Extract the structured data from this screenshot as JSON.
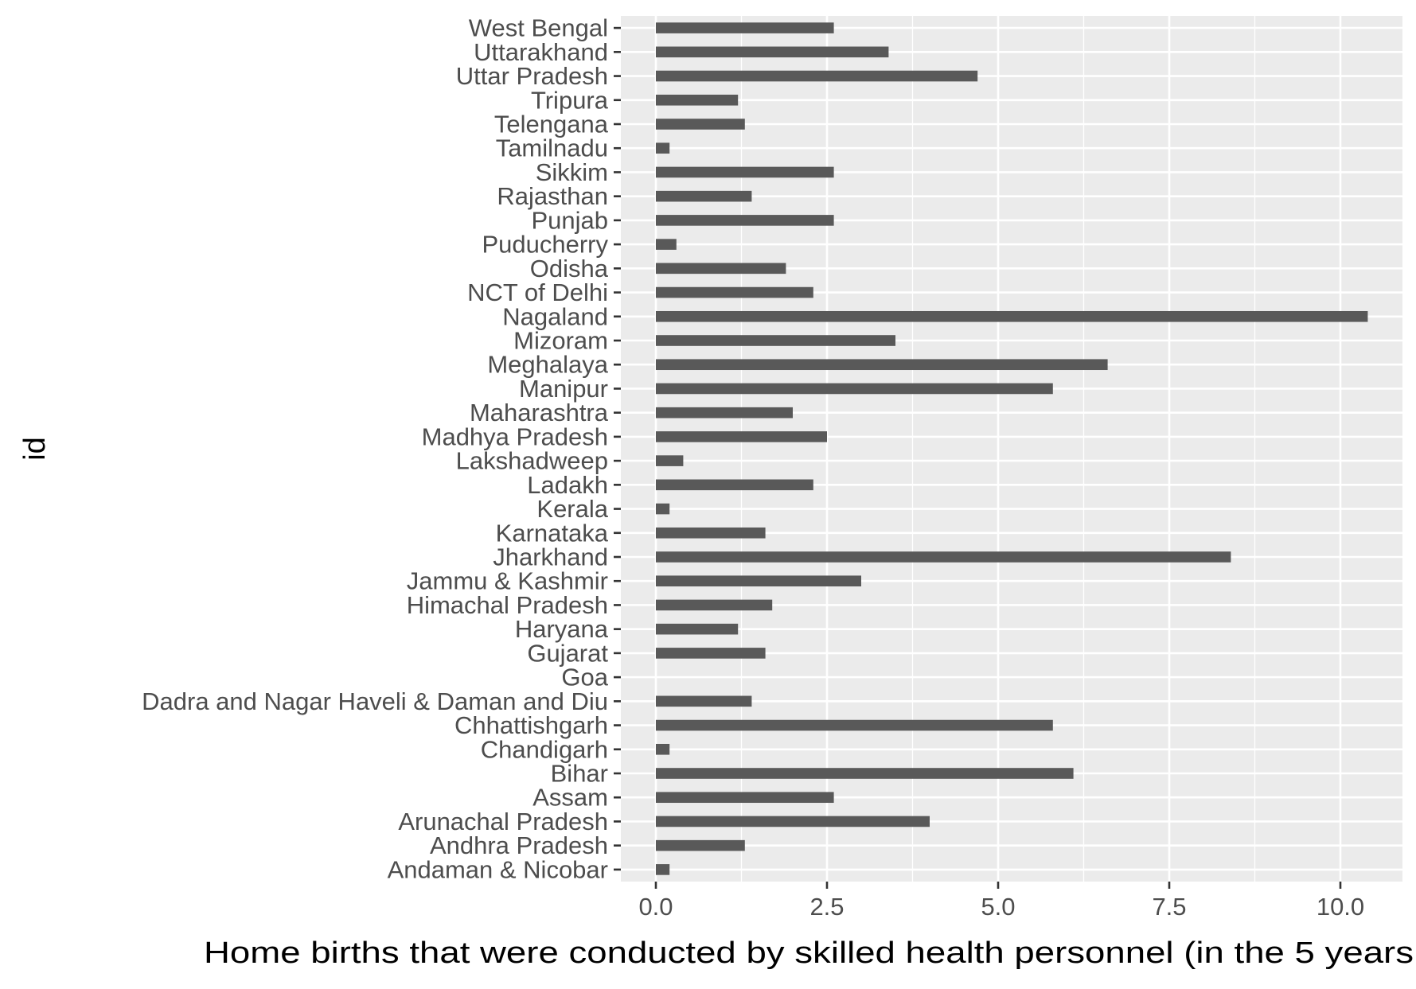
{
  "chart_data": {
    "type": "bar",
    "orientation": "horizontal",
    "xlabel": "Home births that were conducted by skilled health personnel  (in the 5 years",
    "ylabel": "id",
    "xlim": [
      -1.0,
      10.9
    ],
    "x_ticks": [
      0.0,
      2.5,
      5.0,
      7.5,
      10.0
    ],
    "x_tick_labels": [
      "0.0",
      "2.5",
      "5.0",
      "7.5",
      "10.0"
    ],
    "grid": true,
    "legend": "none",
    "categories": [
      "Andaman & Nicobar",
      "Andhra Pradesh",
      "Arunachal Pradesh",
      "Assam",
      "Bihar",
      "Chandigarh",
      "Chhattishgarh",
      "Dadra and Nagar Haveli & Daman and Diu",
      "Goa",
      "Gujarat",
      "Haryana",
      "Himachal Pradesh",
      "Jammu & Kashmir",
      "Jharkhand",
      "Karnataka",
      "Kerala",
      "Ladakh",
      "Lakshadweep",
      "Madhya Pradesh",
      "Maharashtra",
      "Manipur",
      "Meghalaya",
      "Mizoram",
      "Nagaland",
      "NCT of Delhi",
      "Odisha",
      "Puducherry",
      "Punjab",
      "Rajasthan",
      "Sikkim",
      "Tamilnadu",
      "Telengana",
      "Tripura",
      "Uttar Pradesh",
      "Uttarakhand",
      "West Bengal"
    ],
    "values": [
      0.2,
      1.3,
      4.0,
      2.6,
      6.1,
      0.2,
      5.8,
      1.4,
      0.0,
      1.6,
      1.2,
      1.7,
      3.0,
      8.4,
      1.6,
      0.2,
      2.3,
      0.4,
      2.5,
      2.0,
      5.8,
      6.6,
      3.5,
      10.4,
      2.3,
      1.9,
      0.3,
      2.6,
      1.4,
      2.6,
      0.2,
      1.3,
      1.2,
      4.7,
      3.4,
      2.6
    ],
    "colors": {
      "bar": "#595959",
      "panel": "#ebebeb",
      "grid": "#ffffff"
    }
  }
}
